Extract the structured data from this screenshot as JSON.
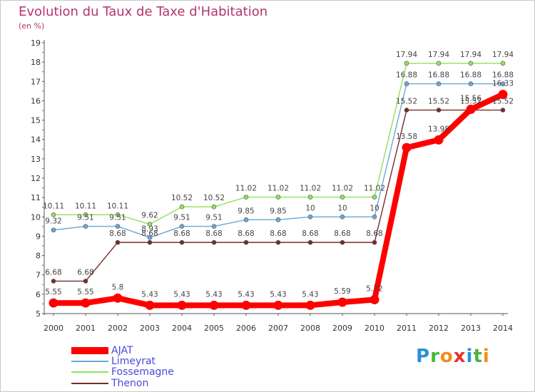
{
  "title": "Evolution du Taux de Taxe d'Habitation",
  "unit_label": "(en %)",
  "logo": {
    "letters": [
      "P",
      "r",
      "o",
      "x",
      "i",
      "t",
      "i"
    ],
    "colors": [
      "#2e8fd6",
      "#4ab63f",
      "#f28c1e",
      "#e8322c",
      "#2e8fd6",
      "#4ab63f",
      "#f28c1e"
    ]
  },
  "chart_data": {
    "type": "line",
    "title": "Evolution du Taux de Taxe d'Habitation",
    "xlabel": "",
    "ylabel": "(en %)",
    "ylim": [
      5,
      19
    ],
    "yticks": [
      5,
      6,
      7,
      8,
      9,
      10,
      11,
      12,
      13,
      14,
      15,
      16,
      17,
      18,
      19
    ],
    "x": [
      "2000",
      "2001",
      "2002",
      "2003",
      "2004",
      "2005",
      "2006",
      "2007",
      "2008",
      "2009",
      "2010",
      "2011",
      "2012",
      "2013",
      "2014"
    ],
    "grid": false,
    "legend_position": "bottom-left",
    "series": [
      {
        "name": "AJAT",
        "color": "#ff0000",
        "values": [
          5.55,
          5.55,
          5.8,
          5.43,
          5.43,
          5.43,
          5.43,
          5.43,
          5.43,
          5.59,
          5.72,
          13.58,
          13.98,
          15.56,
          16.33
        ],
        "labels": [
          "5.55",
          "5.55",
          "5.8",
          "5.43",
          "5.43",
          "5.43",
          "5.43",
          "5.43",
          "5.43",
          "5.59",
          "5.72",
          "13.58",
          "13.98",
          "15.56",
          "16.33"
        ]
      },
      {
        "name": "Limeyrat",
        "color": "#6aa8d8",
        "values": [
          9.32,
          9.51,
          9.51,
          8.93,
          9.51,
          9.51,
          9.85,
          9.85,
          10,
          10,
          10,
          16.88,
          16.88,
          16.88,
          16.88
        ],
        "labels": [
          "9.32",
          "9.51",
          "9.51",
          "8.93",
          "9.51",
          "9.51",
          "9.85",
          "9.85",
          "10",
          "10",
          "10",
          "16.88",
          "16.88",
          "16.88",
          "16.88"
        ]
      },
      {
        "name": "Fossemagne",
        "color": "#8fe35a",
        "values": [
          10.11,
          10.11,
          10.11,
          9.62,
          10.52,
          10.52,
          11.02,
          11.02,
          11.02,
          11.02,
          11.02,
          17.94,
          17.94,
          17.94,
          17.94
        ],
        "labels": [
          "10.11",
          "10.11",
          "10.11",
          "9.62",
          "10.52",
          "10.52",
          "11.02",
          "11.02",
          "11.02",
          "11.02",
          "11.02",
          "17.94",
          "17.94",
          "17.94",
          "17.94"
        ]
      },
      {
        "name": "Thenon",
        "color": "#7a2a2a",
        "values": [
          6.68,
          6.68,
          8.68,
          8.68,
          8.68,
          8.68,
          8.68,
          8.68,
          8.68,
          8.68,
          8.68,
          15.52,
          15.52,
          15.52,
          15.52
        ],
        "labels": [
          "6.68",
          "6.68",
          "8.68",
          "8.68",
          "8.68",
          "8.68",
          "8.68",
          "8.68",
          "8.68",
          "8.68",
          "8.68",
          "15.52",
          "15.52",
          "15.52",
          "15.52"
        ]
      }
    ]
  }
}
